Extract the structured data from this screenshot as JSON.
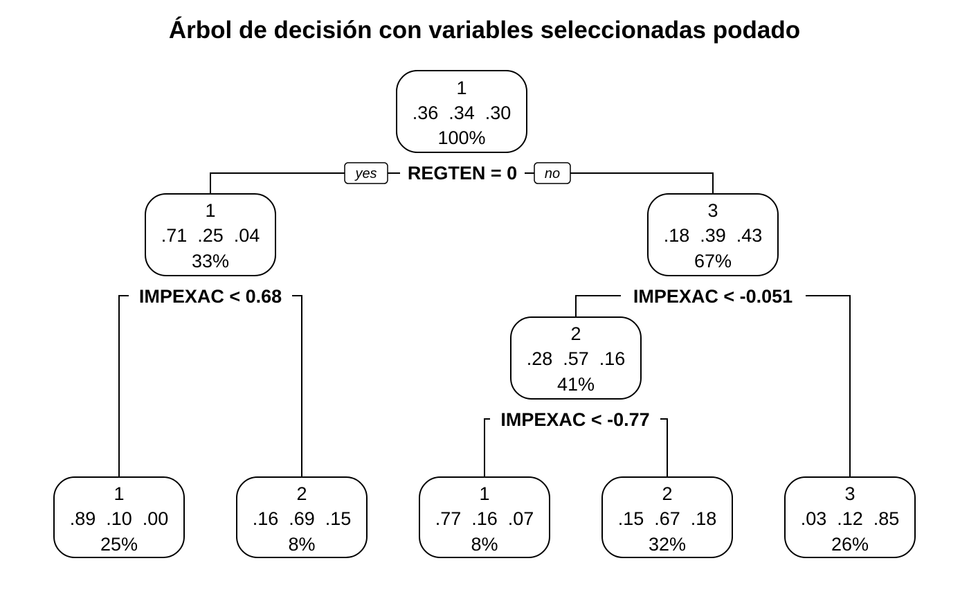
{
  "title": "Árbol de decisión con variables seleccionadas podado",
  "branch_labels": {
    "yes": "yes",
    "no": "no"
  },
  "nodes": [
    {
      "id": "root",
      "class": "1",
      "probs": ".36  .34  .30",
      "percent": "100%"
    },
    {
      "id": "left",
      "class": "1",
      "probs": ".71  .25  .04",
      "percent": "33%"
    },
    {
      "id": "right",
      "class": "3",
      "probs": ".18  .39  .43",
      "percent": "67%"
    },
    {
      "id": "right-left",
      "class": "2",
      "probs": ".28  .57  .16",
      "percent": "41%"
    },
    {
      "id": "leaf-1",
      "class": "1",
      "probs": ".89  .10  .00",
      "percent": "25%"
    },
    {
      "id": "leaf-2",
      "class": "2",
      "probs": ".16  .69  .15",
      "percent": "8%"
    },
    {
      "id": "leaf-3",
      "class": "1",
      "probs": ".77  .16  .07",
      "percent": "8%"
    },
    {
      "id": "leaf-4",
      "class": "2",
      "probs": ".15  .67  .18",
      "percent": "32%"
    },
    {
      "id": "leaf-5",
      "class": "3",
      "probs": ".03  .12  .85",
      "percent": "26%"
    }
  ],
  "splits": [
    {
      "id": "root-split",
      "label": "REGTEN = 0"
    },
    {
      "id": "left-split",
      "label": "IMPEXAC < 0.68"
    },
    {
      "id": "right-split",
      "label": "IMPEXAC < -0.051"
    },
    {
      "id": "right-left-split",
      "label": "IMPEXAC < -0.77"
    }
  ]
}
